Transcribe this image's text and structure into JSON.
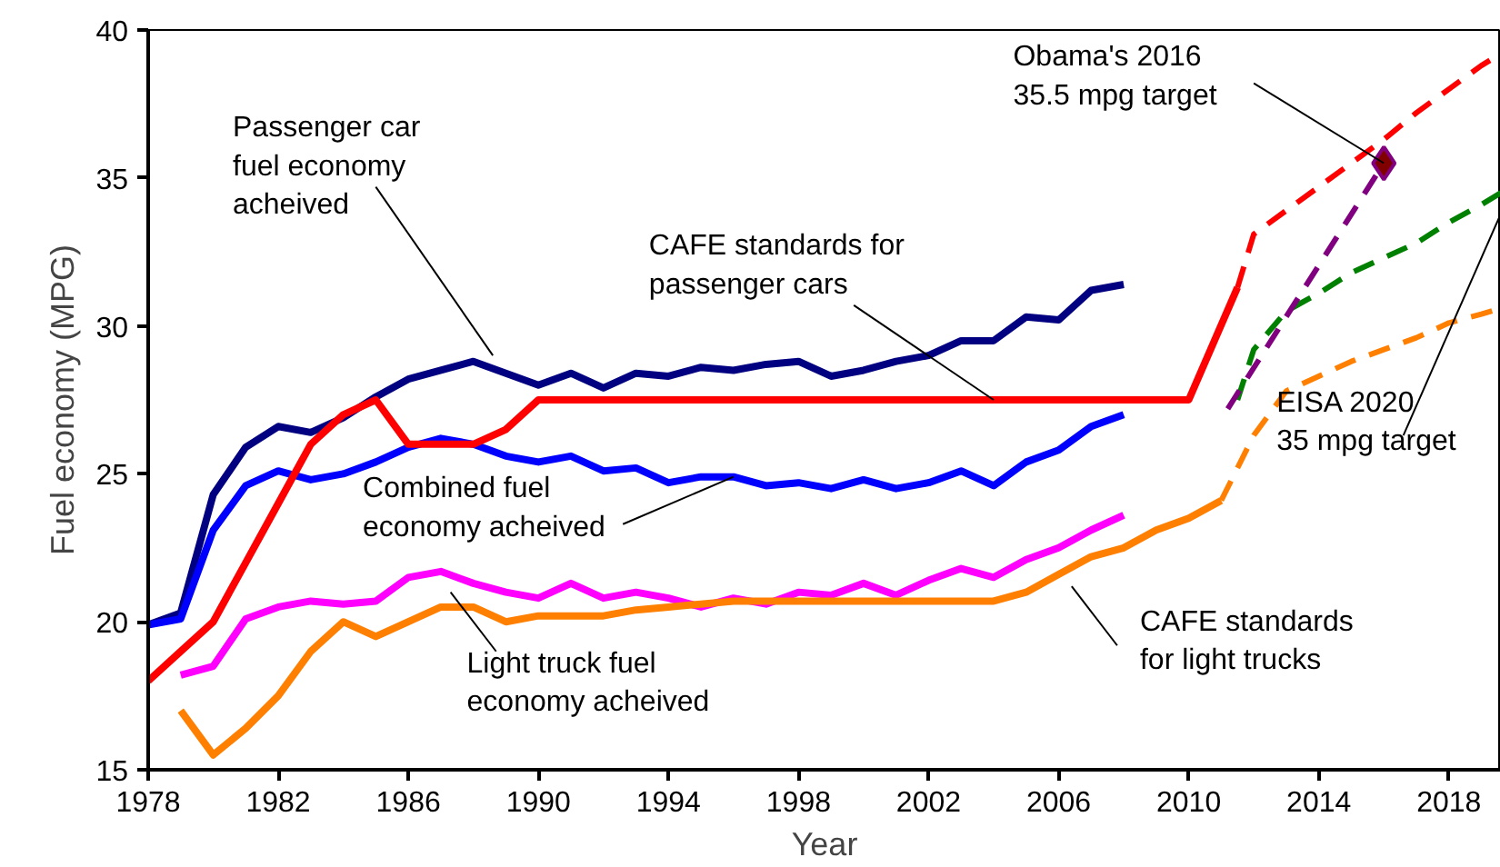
{
  "chart_data": {
    "type": "line",
    "xlabel": "Year",
    "ylabel": "Fuel economy (MPG)",
    "xlim": [
      1978,
      2019.6
    ],
    "ylim": [
      15,
      40
    ],
    "xticks": [
      1978,
      1982,
      1986,
      1990,
      1994,
      1998,
      2002,
      2006,
      2010,
      2014,
      2018
    ],
    "yticks": [
      15,
      20,
      25,
      30,
      35,
      40
    ],
    "grid": false,
    "series": [
      {
        "color": "#000080",
        "line_style": "solid",
        "x": [
          1978,
          1979,
          1980,
          1981,
          1982,
          1983,
          1984,
          1985,
          1986,
          1987,
          1988,
          1989,
          1990,
          1991,
          1992,
          1993,
          1994,
          1995,
          1996,
          1997,
          1998,
          1999,
          2000,
          2001,
          2002,
          2003,
          2004,
          2005,
          2006,
          2007,
          2008
        ],
        "values": [
          19.9,
          20.3,
          24.3,
          25.9,
          26.6,
          26.4,
          26.9,
          27.6,
          28.2,
          28.5,
          28.8,
          28.4,
          28.0,
          28.4,
          27.9,
          28.4,
          28.3,
          28.6,
          28.5,
          28.7,
          28.8,
          28.3,
          28.5,
          28.8,
          29.0,
          29.5,
          29.5,
          30.3,
          30.2,
          31.2,
          31.4
        ]
      },
      {
        "color": "#0000ff",
        "line_style": "solid",
        "x": [
          1978,
          1979,
          1980,
          1981,
          1982,
          1983,
          1984,
          1985,
          1986,
          1987,
          1988,
          1989,
          1990,
          1991,
          1992,
          1993,
          1994,
          1995,
          1996,
          1997,
          1998,
          1999,
          2000,
          2001,
          2002,
          2003,
          2004,
          2005,
          2006,
          2007,
          2008
        ],
        "values": [
          19.9,
          20.1,
          23.1,
          24.6,
          25.1,
          24.8,
          25.0,
          25.4,
          25.9,
          26.2,
          26.0,
          25.6,
          25.4,
          25.6,
          25.1,
          25.2,
          24.7,
          24.9,
          24.9,
          24.6,
          24.7,
          24.5,
          24.8,
          24.5,
          24.7,
          25.1,
          24.6,
          25.4,
          25.8,
          26.6,
          27.0
        ]
      },
      {
        "color": "#ff00ff",
        "line_style": "solid",
        "x": [
          1979,
          1980,
          1981,
          1982,
          1983,
          1984,
          1985,
          1986,
          1987,
          1988,
          1989,
          1990,
          1991,
          1992,
          1993,
          1994,
          1995,
          1996,
          1997,
          1998,
          1999,
          2000,
          2001,
          2002,
          2003,
          2004,
          2005,
          2006,
          2007,
          2008
        ],
        "values": [
          18.2,
          18.5,
          20.1,
          20.5,
          20.7,
          20.6,
          20.7,
          21.5,
          21.7,
          21.3,
          21.0,
          20.8,
          21.3,
          20.8,
          21.0,
          20.8,
          20.5,
          20.8,
          20.6,
          21.0,
          20.9,
          21.3,
          20.9,
          21.4,
          21.8,
          21.5,
          22.1,
          22.5,
          23.1,
          23.6
        ]
      },
      {
        "color": "#ff0000",
        "line_style": "solid",
        "x": [
          1978,
          1979,
          1980,
          1981,
          1982,
          1983,
          1984,
          1985,
          1986,
          1987,
          1988,
          1989,
          1990,
          2010,
          2011.5
        ],
        "values": [
          18,
          19,
          20,
          22,
          24,
          26,
          27,
          27.5,
          26,
          26,
          26,
          26.5,
          27.5,
          27.5,
          31.3
        ]
      },
      {
        "color": "#ff0000",
        "line_style": "dashed",
        "x": [
          2011.5,
          2012,
          2013,
          2014,
          2015,
          2016,
          2017,
          2018,
          2019,
          2019.6
        ],
        "values": [
          31.3,
          33.1,
          33.9,
          34.7,
          35.5,
          36.3,
          37.2,
          38.0,
          38.8,
          39.2
        ]
      },
      {
        "color": "#ff7f00",
        "line_style": "solid",
        "x": [
          1979,
          1980,
          1981,
          1982,
          1983,
          1984,
          1985,
          1986,
          1987,
          1988,
          1989,
          1990,
          1991,
          1992,
          1993,
          1994,
          1995,
          1996,
          2004,
          2005,
          2006,
          2007,
          2008,
          2009,
          2010,
          2011
        ],
        "values": [
          17.0,
          15.5,
          16.4,
          17.5,
          19.0,
          20.0,
          19.5,
          20.0,
          20.5,
          20.5,
          20.0,
          20.2,
          20.2,
          20.2,
          20.4,
          20.5,
          20.6,
          20.7,
          20.7,
          21.0,
          21.6,
          22.2,
          22.5,
          23.1,
          23.5,
          24.1
        ]
      },
      {
        "color": "#ff7f00",
        "line_style": "dashed",
        "x": [
          2011,
          2012,
          2013,
          2014,
          2015,
          2016,
          2017,
          2018,
          2019,
          2019.6
        ],
        "values": [
          24.1,
          26.3,
          27.8,
          28.3,
          28.8,
          29.2,
          29.6,
          30.1,
          30.4,
          30.6
        ]
      },
      {
        "color": "#008000",
        "line_style": "dashed",
        "x": [
          2011.5,
          2012,
          2013,
          2014,
          2015,
          2016,
          2017,
          2018,
          2019,
          2019.6
        ],
        "values": [
          27.5,
          29.2,
          30.5,
          31.1,
          31.8,
          32.3,
          32.8,
          33.5,
          34.1,
          34.5
        ]
      },
      {
        "color": "#800080",
        "line_style": "dashed",
        "x": [
          2011.2,
          2016
        ],
        "values": [
          27.2,
          35.5
        ]
      },
      {
        "type": "scatter",
        "marker": "diamond",
        "color": "#800000",
        "x": [
          2016
        ],
        "values": [
          35.5
        ]
      }
    ],
    "annotations": [
      {
        "text": "Passenger car\nfuel economy\nacheived",
        "x": 1988.6,
        "y": 29.0
      },
      {
        "text": "CAFE standards for\npassenger cars",
        "x": 2004,
        "y": 27.5
      },
      {
        "text": "Combined fuel\neconomy acheived",
        "x": 1996,
        "y": 24.9
      },
      "Light truck fuel\neconomy acheived",
      "CAFE standards\nfor light trucks",
      "EISA 2020\n35 mpg target",
      {
        "text": "Obama's 2016\n35.5 mpg target",
        "x": 2016,
        "y": 35.5
      }
    ]
  }
}
